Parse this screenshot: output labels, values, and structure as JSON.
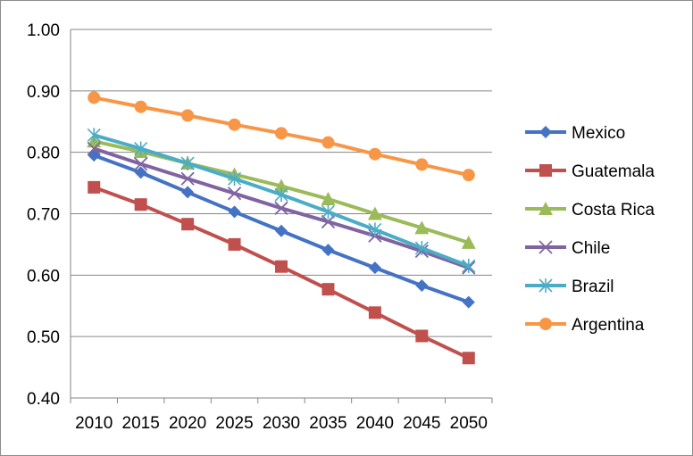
{
  "chart_data": {
    "type": "line",
    "title": "",
    "xlabel": "",
    "ylabel": "",
    "categories": [
      "2010",
      "2015",
      "2020",
      "2025",
      "2030",
      "2035",
      "2040",
      "2045",
      "2050"
    ],
    "ylim": [
      0.4,
      1.0
    ],
    "yticks": [
      "0.40",
      "0.50",
      "0.60",
      "0.70",
      "0.80",
      "0.90",
      "1.00"
    ],
    "grid": "horizontal",
    "legend_position": "right",
    "series": [
      {
        "name": "Mexico",
        "color": "#4472c4",
        "marker": "diamond",
        "values": [
          0.795,
          0.767,
          0.735,
          0.703,
          0.672,
          0.641,
          0.612,
          0.583,
          0.556
        ]
      },
      {
        "name": "Guatemala",
        "color": "#c0504d",
        "marker": "square",
        "values": [
          0.743,
          0.715,
          0.683,
          0.65,
          0.614,
          0.577,
          0.539,
          0.501,
          0.465
        ]
      },
      {
        "name": "Costa Rica",
        "color": "#9bbb59",
        "marker": "triangle",
        "values": [
          0.818,
          0.801,
          0.782,
          0.764,
          0.745,
          0.724,
          0.7,
          0.677,
          0.653
        ]
      },
      {
        "name": "Chile",
        "color": "#8064a2",
        "marker": "x",
        "values": [
          0.806,
          0.781,
          0.757,
          0.733,
          0.709,
          0.687,
          0.664,
          0.639,
          0.612
        ]
      },
      {
        "name": "Brazil",
        "color": "#4bacc6",
        "marker": "star",
        "values": [
          0.828,
          0.806,
          0.782,
          0.757,
          0.731,
          0.703,
          0.674,
          0.644,
          0.615
        ]
      },
      {
        "name": "Argentina",
        "color": "#f79646",
        "marker": "circle",
        "values": [
          0.889,
          0.874,
          0.86,
          0.845,
          0.831,
          0.816,
          0.797,
          0.78,
          0.763
        ]
      }
    ]
  }
}
